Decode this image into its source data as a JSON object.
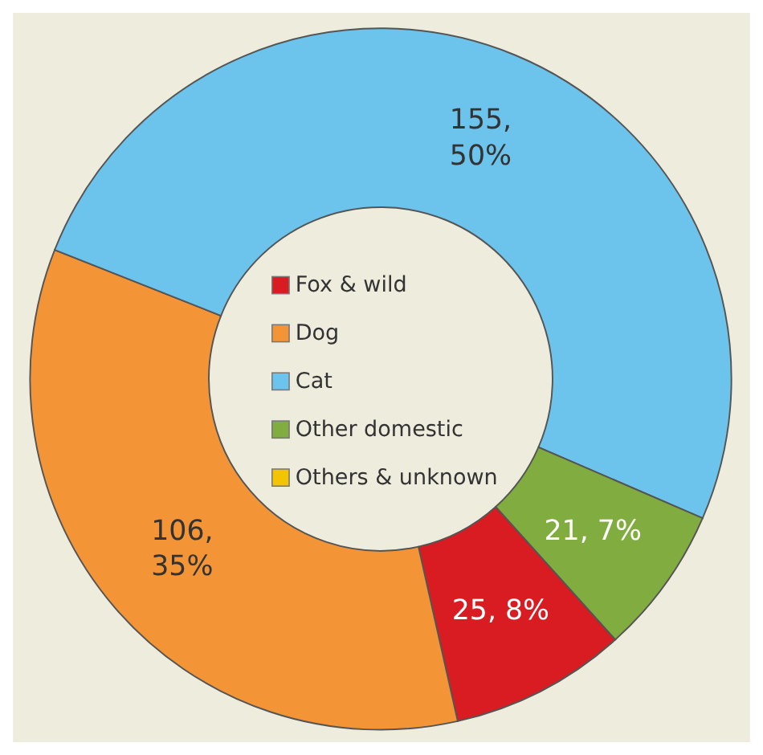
{
  "chart_data": {
    "type": "donut",
    "categories": [
      "Fox & wild",
      "Dog",
      "Cat",
      "Other domestic",
      "Others & unknown"
    ],
    "values": [
      25,
      106,
      155,
      21,
      0
    ],
    "colors": [
      "#d81c22",
      "#f39536",
      "#6cc3ec",
      "#80ac40",
      "#f2c500"
    ],
    "value_labels": [
      "25, 8%",
      "106,\n35%",
      "155,\n50%",
      "21, 7%",
      null
    ],
    "legend": "center"
  }
}
